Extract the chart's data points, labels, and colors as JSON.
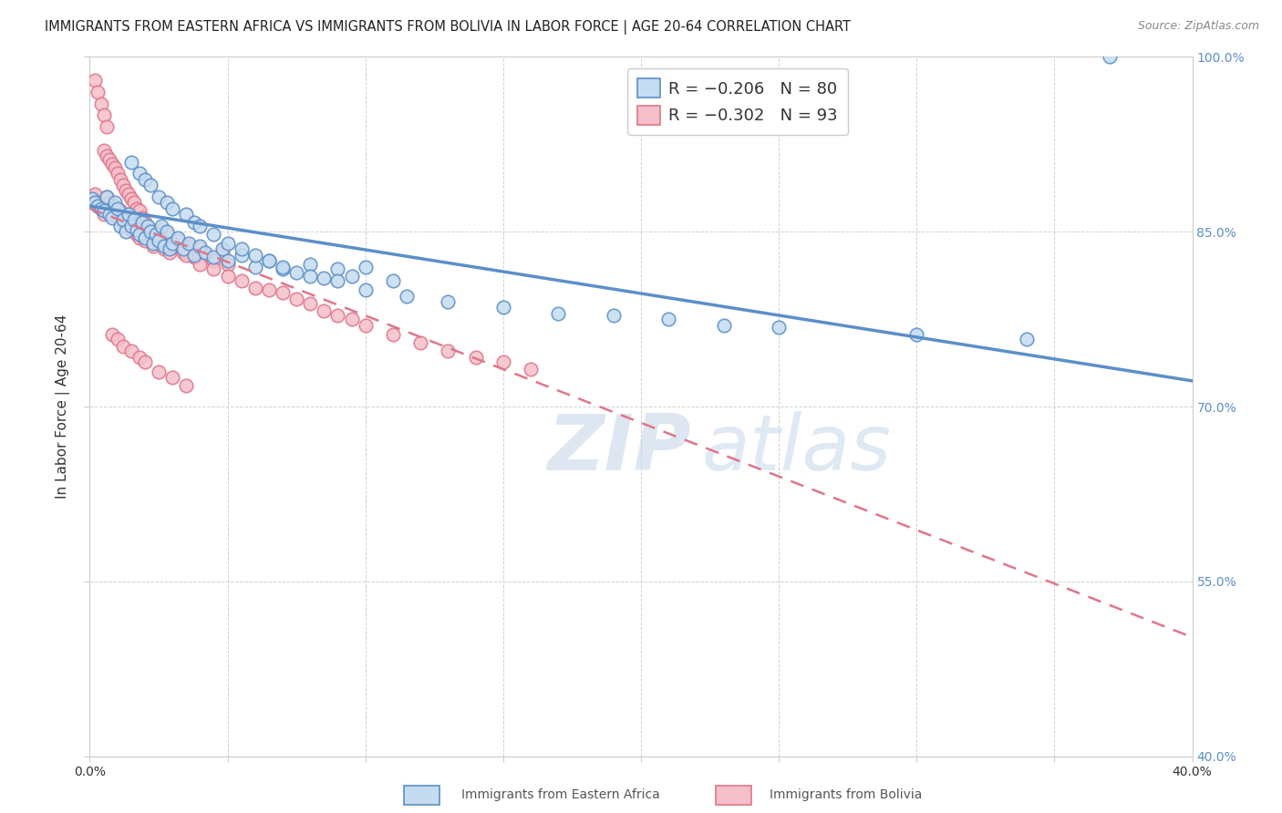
{
  "title": "IMMIGRANTS FROM EASTERN AFRICA VS IMMIGRANTS FROM BOLIVIA IN LABOR FORCE | AGE 20-64 CORRELATION CHART",
  "source": "Source: ZipAtlas.com",
  "ylabel": "In Labor Force | Age 20-64",
  "xlim": [
    0.0,
    0.4
  ],
  "ylim": [
    0.4,
    1.0
  ],
  "xticks": [
    0.0,
    0.05,
    0.1,
    0.15,
    0.2,
    0.25,
    0.3,
    0.35,
    0.4
  ],
  "xticklabels_show": [
    "0.0%",
    "40.0%"
  ],
  "yticks": [
    0.4,
    0.55,
    0.7,
    0.85,
    1.0
  ],
  "yticklabels": [
    "40.0%",
    "55.0%",
    "70.0%",
    "85.0%",
    "100.0%"
  ],
  "blue_scatter_x": [
    0.001,
    0.002,
    0.003,
    0.004,
    0.005,
    0.006,
    0.007,
    0.008,
    0.009,
    0.01,
    0.011,
    0.012,
    0.013,
    0.014,
    0.015,
    0.016,
    0.017,
    0.018,
    0.019,
    0.02,
    0.021,
    0.022,
    0.023,
    0.024,
    0.025,
    0.026,
    0.027,
    0.028,
    0.029,
    0.03,
    0.032,
    0.034,
    0.036,
    0.038,
    0.04,
    0.042,
    0.045,
    0.048,
    0.05,
    0.055,
    0.06,
    0.065,
    0.07,
    0.075,
    0.08,
    0.085,
    0.09,
    0.095,
    0.1,
    0.11,
    0.015,
    0.018,
    0.02,
    0.022,
    0.025,
    0.028,
    0.03,
    0.035,
    0.038,
    0.04,
    0.045,
    0.05,
    0.055,
    0.06,
    0.065,
    0.07,
    0.08,
    0.09,
    0.1,
    0.115,
    0.13,
    0.15,
    0.17,
    0.19,
    0.21,
    0.23,
    0.25,
    0.3,
    0.34,
    0.37
  ],
  "blue_scatter_y": [
    0.878,
    0.875,
    0.872,
    0.87,
    0.868,
    0.88,
    0.865,
    0.862,
    0.875,
    0.87,
    0.855,
    0.86,
    0.85,
    0.865,
    0.855,
    0.86,
    0.852,
    0.848,
    0.858,
    0.845,
    0.855,
    0.85,
    0.84,
    0.848,
    0.842,
    0.855,
    0.838,
    0.85,
    0.835,
    0.84,
    0.845,
    0.835,
    0.84,
    0.83,
    0.838,
    0.832,
    0.828,
    0.835,
    0.825,
    0.83,
    0.82,
    0.825,
    0.818,
    0.815,
    0.822,
    0.81,
    0.818,
    0.812,
    0.82,
    0.808,
    0.91,
    0.9,
    0.895,
    0.89,
    0.88,
    0.875,
    0.87,
    0.865,
    0.858,
    0.855,
    0.848,
    0.84,
    0.835,
    0.83,
    0.825,
    0.82,
    0.812,
    0.808,
    0.8,
    0.795,
    0.79,
    0.785,
    0.78,
    0.778,
    0.775,
    0.77,
    0.768,
    0.762,
    0.758,
    1.0
  ],
  "pink_scatter_x": [
    0.001,
    0.002,
    0.003,
    0.004,
    0.005,
    0.006,
    0.007,
    0.008,
    0.009,
    0.01,
    0.011,
    0.012,
    0.013,
    0.014,
    0.015,
    0.016,
    0.017,
    0.018,
    0.019,
    0.02,
    0.021,
    0.022,
    0.023,
    0.024,
    0.025,
    0.026,
    0.027,
    0.028,
    0.029,
    0.03,
    0.032,
    0.034,
    0.036,
    0.038,
    0.04,
    0.042,
    0.045,
    0.048,
    0.05,
    0.005,
    0.006,
    0.007,
    0.008,
    0.009,
    0.01,
    0.011,
    0.012,
    0.013,
    0.014,
    0.015,
    0.016,
    0.017,
    0.018,
    0.019,
    0.02,
    0.022,
    0.025,
    0.03,
    0.035,
    0.04,
    0.045,
    0.05,
    0.055,
    0.06,
    0.065,
    0.07,
    0.075,
    0.08,
    0.085,
    0.09,
    0.095,
    0.1,
    0.11,
    0.12,
    0.13,
    0.14,
    0.15,
    0.16,
    0.008,
    0.01,
    0.012,
    0.015,
    0.018,
    0.02,
    0.025,
    0.03,
    0.035,
    0.002,
    0.003,
    0.004,
    0.005,
    0.006
  ],
  "pink_scatter_y": [
    0.878,
    0.882,
    0.875,
    0.87,
    0.865,
    0.88,
    0.875,
    0.868,
    0.872,
    0.862,
    0.868,
    0.858,
    0.855,
    0.86,
    0.852,
    0.858,
    0.848,
    0.845,
    0.855,
    0.842,
    0.852,
    0.848,
    0.838,
    0.845,
    0.84,
    0.852,
    0.835,
    0.848,
    0.832,
    0.838,
    0.842,
    0.832,
    0.838,
    0.828,
    0.835,
    0.83,
    0.825,
    0.832,
    0.822,
    0.92,
    0.915,
    0.912,
    0.908,
    0.905,
    0.9,
    0.895,
    0.89,
    0.885,
    0.882,
    0.878,
    0.875,
    0.87,
    0.868,
    0.862,
    0.858,
    0.852,
    0.845,
    0.838,
    0.83,
    0.822,
    0.818,
    0.812,
    0.808,
    0.802,
    0.8,
    0.798,
    0.792,
    0.788,
    0.782,
    0.778,
    0.775,
    0.77,
    0.762,
    0.755,
    0.748,
    0.742,
    0.738,
    0.732,
    0.762,
    0.758,
    0.752,
    0.748,
    0.742,
    0.738,
    0.73,
    0.725,
    0.718,
    0.98,
    0.97,
    0.96,
    0.95,
    0.94
  ],
  "blue_line_x": [
    0.0,
    0.4
  ],
  "blue_line_y": [
    0.872,
    0.722
  ],
  "pink_line_x": [
    0.0,
    0.4
  ],
  "pink_line_y": [
    0.87,
    0.502
  ],
  "scatter_size": 110,
  "blue_color": "#c5dcf0",
  "blue_edge": "#5b8fc9",
  "pink_color": "#f5c0cb",
  "pink_edge": "#e0758a",
  "watermark_zip": "ZIP",
  "watermark_atlas": "atlas",
  "background_color": "#ffffff",
  "grid_color": "#cccccc",
  "title_fontsize": 10.5,
  "axis_label_fontsize": 11,
  "tick_fontsize": 10,
  "legend_fontsize": 13,
  "right_tick_color": "#5b8fc9"
}
